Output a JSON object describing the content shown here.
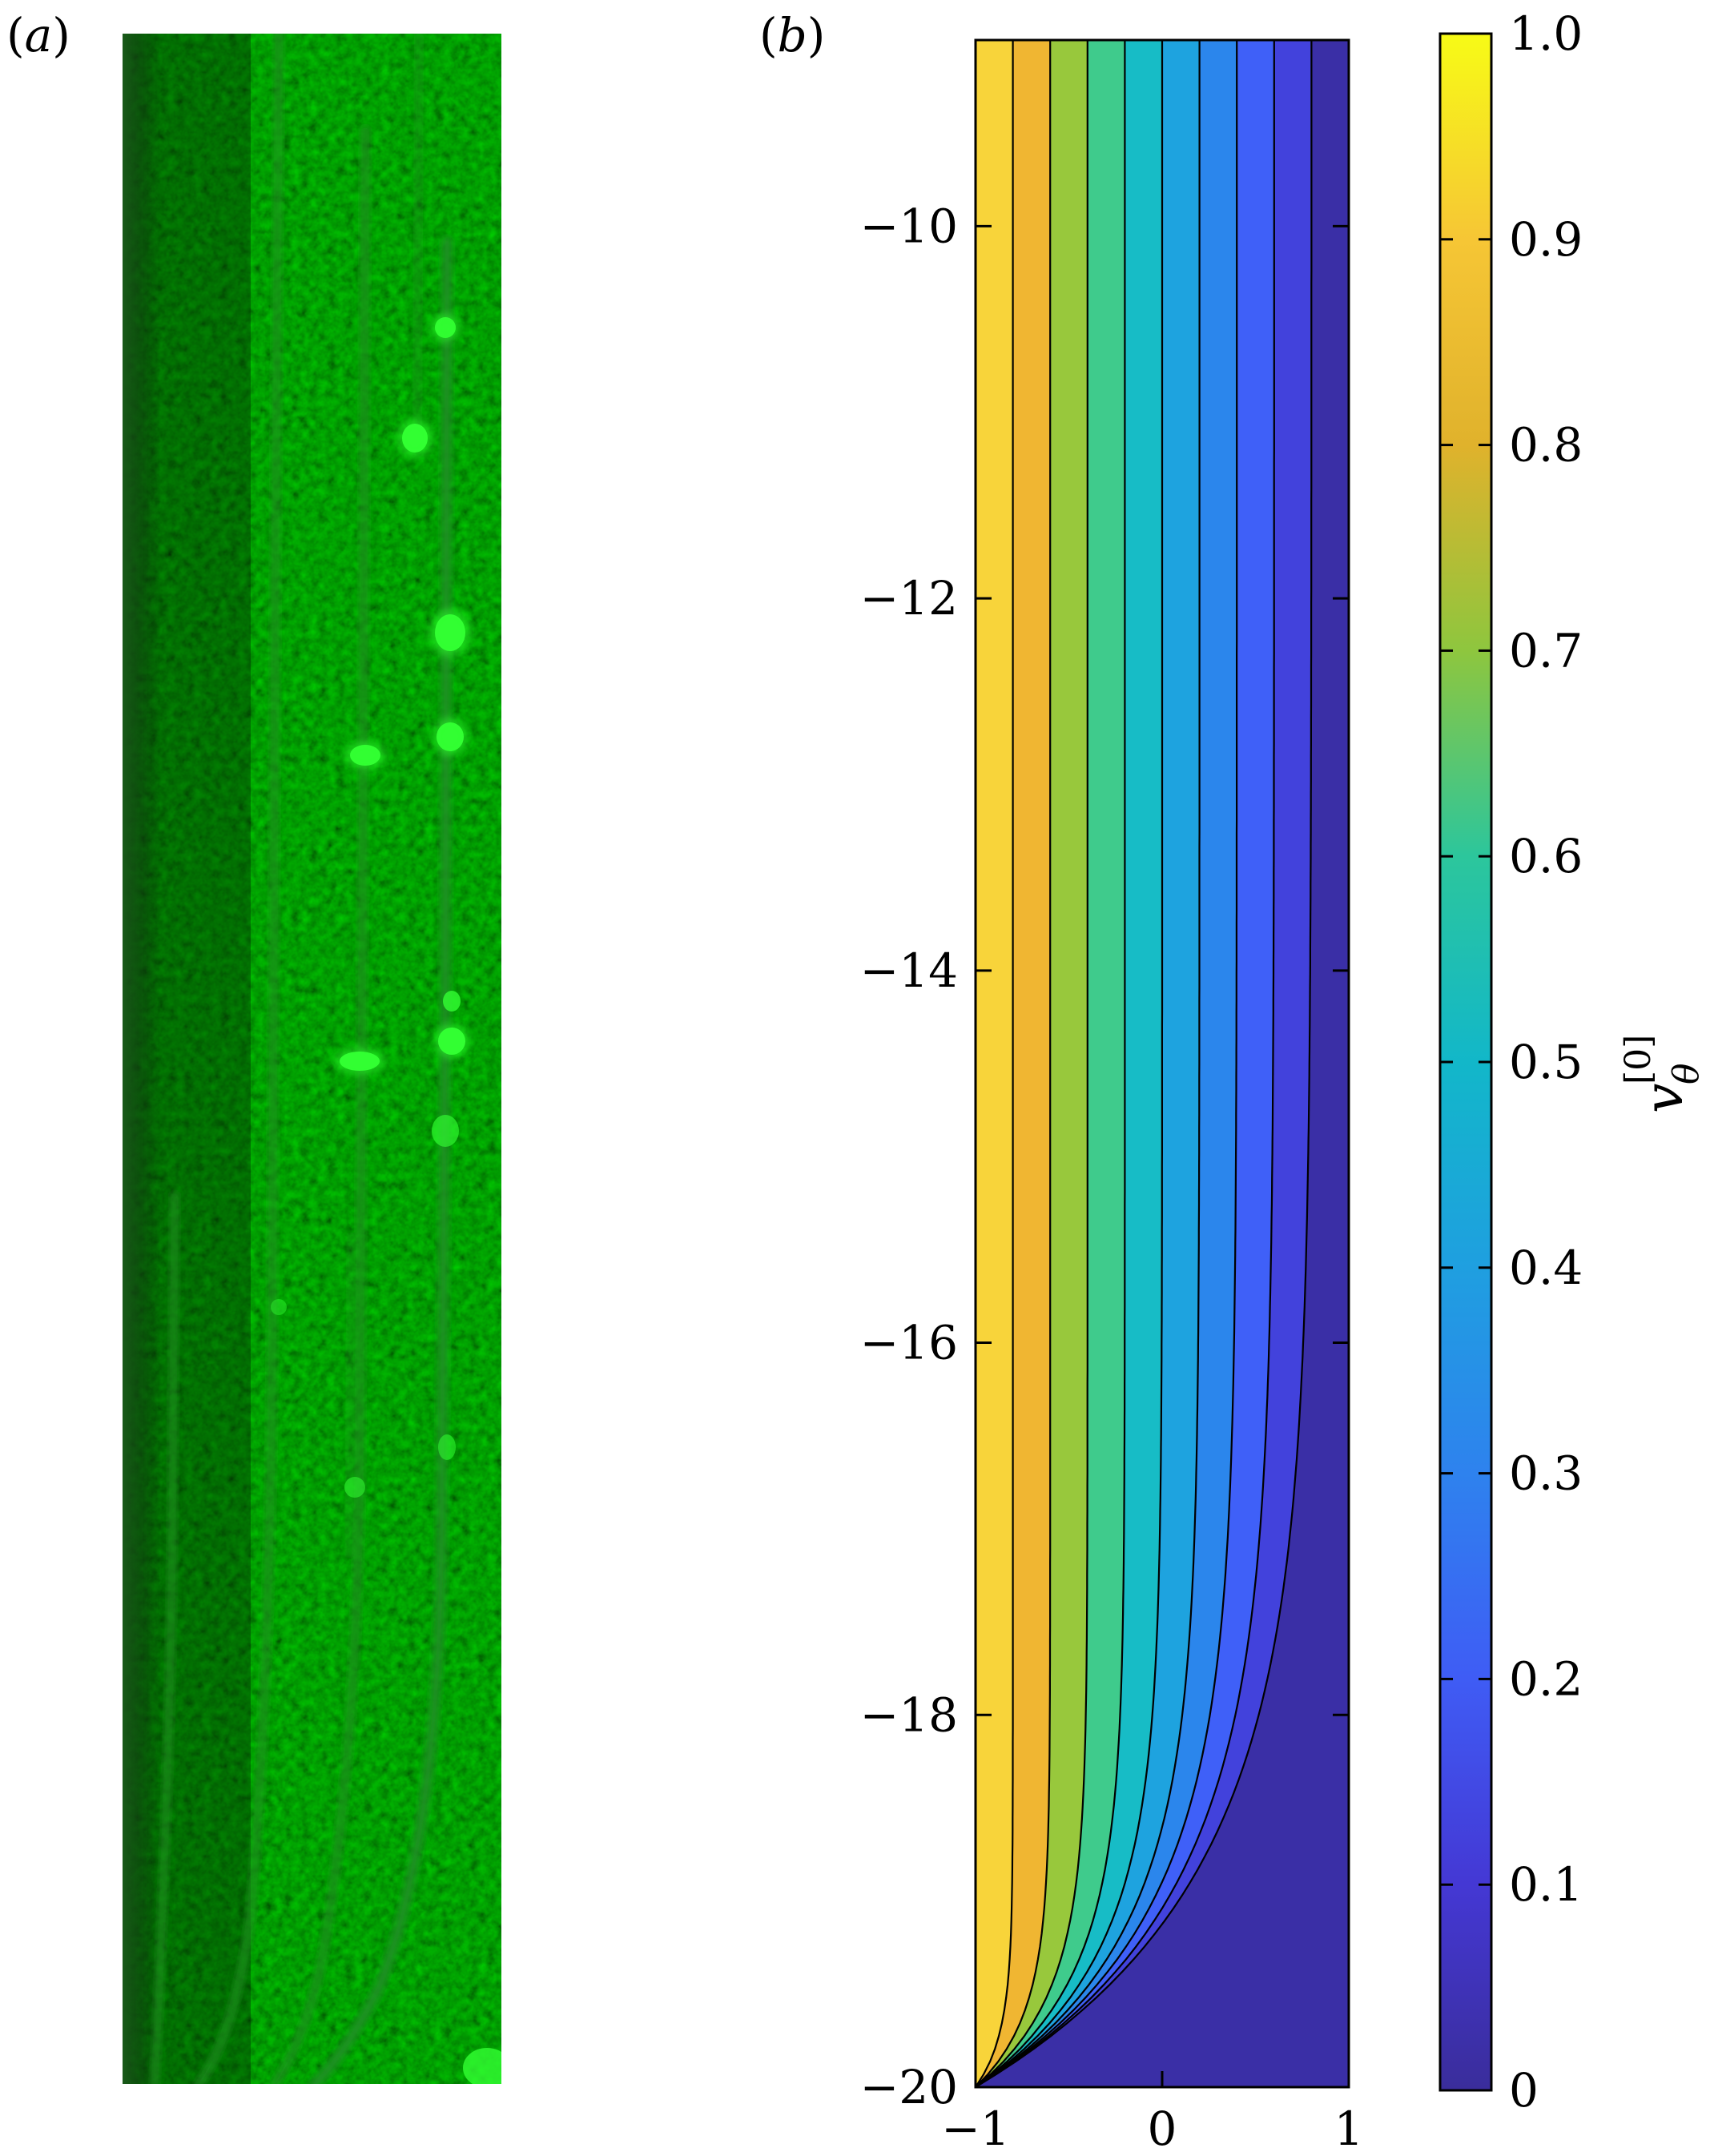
{
  "figure": {
    "panel_a_label": "a",
    "panel_b_label": "b"
  },
  "panel_a": {
    "description_icon": "fluorescence-microscopy-image",
    "colors": {
      "background": "#0c2a0c",
      "streak": "#1f8f22",
      "bright": "#33ff33"
    }
  },
  "chart_data": {
    "type": "contour",
    "title": "",
    "xlabel": "",
    "ylabel": "",
    "xlim": [
      -1,
      1
    ],
    "ylim": [
      -20,
      -9
    ],
    "x_ticks": [
      -1,
      0,
      1
    ],
    "x_tick_labels": [
      "−1",
      "0",
      "1"
    ],
    "y_ticks": [
      -10,
      -12,
      -14,
      -16,
      -18,
      -20
    ],
    "y_tick_labels": [
      "−10",
      "−12",
      "−14",
      "−16",
      "−18",
      "−20"
    ],
    "levels": [
      0,
      0.1,
      0.2,
      0.3,
      0.4,
      0.5,
      0.6,
      0.7,
      0.8,
      0.9,
      1.0
    ],
    "contour_lines": [
      0.1,
      0.2,
      0.3,
      0.4,
      0.5,
      0.6,
      0.7,
      0.8,
      0.9
    ],
    "uniform_profile": "v = (1 - x) / 2 far from z = -20",
    "boundary_layer_base": -20,
    "colormap": "viridis-like",
    "band_colors": [
      "#3a2fa6",
      "#4242dc",
      "#3f60f8",
      "#2b86ec",
      "#1ea3df",
      "#17bcc6",
      "#3fcb8c",
      "#98c83c",
      "#f0b632",
      "#f8d43a"
    ],
    "colorbar": {
      "label_main": "v",
      "label_sup": "[0]",
      "label_sub": "θ",
      "ticks": [
        0,
        0.1,
        0.2,
        0.3,
        0.4,
        0.5,
        0.6,
        0.7,
        0.8,
        0.9,
        1.0
      ],
      "tick_labels": [
        "0",
        "0.1",
        "0.2",
        "0.3",
        "0.4",
        "0.5",
        "0.6",
        "0.7",
        "0.8",
        "0.9",
        "1.0"
      ]
    }
  }
}
